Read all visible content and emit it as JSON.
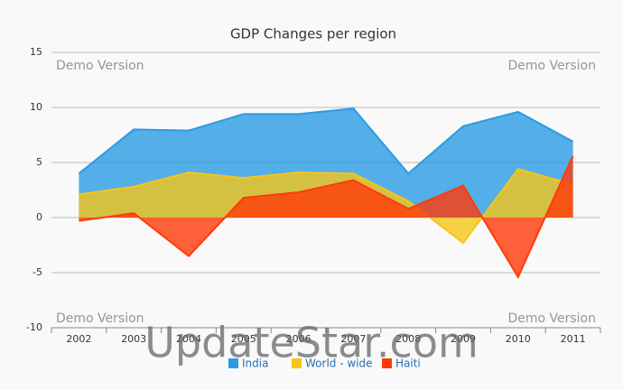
{
  "chart_data": {
    "type": "area",
    "title": "GDP Changes per region",
    "categories": [
      "2002",
      "2003",
      "2004",
      "2005",
      "2006",
      "2007",
      "2008",
      "2009",
      "2010",
      "2011"
    ],
    "series": [
      {
        "name": "India",
        "color": "#2b9be2",
        "values": [
          4.0,
          8.0,
          7.9,
          9.4,
          9.4,
          9.9,
          4.0,
          8.3,
          9.6,
          6.9
        ]
      },
      {
        "name": "World - wide",
        "color": "#f5c518",
        "values": [
          2.1,
          2.8,
          4.1,
          3.6,
          4.1,
          4.0,
          1.5,
          -2.3,
          4.4,
          3.0
        ]
      },
      {
        "name": "Haiti",
        "color": "#ff3a0a",
        "values": [
          -0.3,
          0.4,
          -3.5,
          1.8,
          2.3,
          3.4,
          0.8,
          2.9,
          -5.4,
          5.6
        ]
      }
    ],
    "ylim": [
      -10,
      15
    ],
    "yticks": [
      -10,
      -5,
      0,
      5,
      10,
      15
    ],
    "grid": true,
    "legend": "bottom",
    "annotations": [
      "Demo Version",
      "Demo Version",
      "Demo Version",
      "Demo Version"
    ],
    "watermark": "UpdateStar.com"
  }
}
